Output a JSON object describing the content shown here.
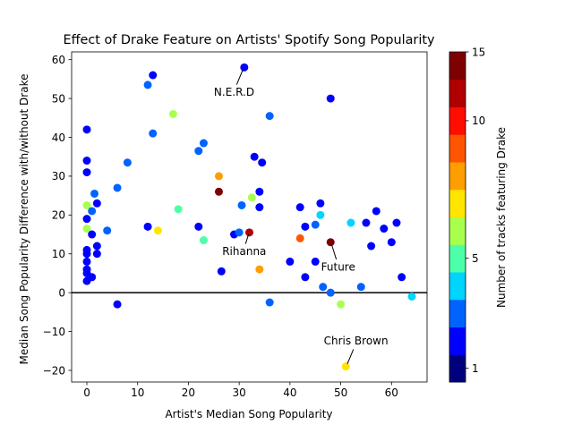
{
  "chart_data": {
    "type": "scatter",
    "title": "Effect of Drake Feature on Artists' Spotify Song Popularity",
    "xlabel": "Artist's Median Song Popularity",
    "ylabel": "Median Song Popularity Difference with/without Drake",
    "xlim": [
      -3,
      67
    ],
    "ylim": [
      -23,
      62
    ],
    "x_ticks": [
      0,
      10,
      20,
      30,
      40,
      50,
      60
    ],
    "y_ticks": [
      -20,
      -10,
      0,
      10,
      20,
      30,
      40,
      50,
      60
    ],
    "reference_line_y": 0,
    "grid": false,
    "colorbar": {
      "label": "Number of tracks featuring Drake",
      "ticks": [
        1,
        5,
        10,
        15
      ],
      "range": [
        0,
        15
      ],
      "colors": [
        "#00007f",
        "#0000ff",
        "#0063ff",
        "#00d4ff",
        "#4effa9",
        "#a9ff4e",
        "#ffe500",
        "#ff9e00",
        "#ff5500",
        "#ff0e00",
        "#b10000",
        "#7f0000"
      ],
      "boundaries": [
        0.4,
        1,
        2,
        3,
        4,
        5,
        6,
        7,
        8,
        9,
        10,
        11,
        15
      ]
    },
    "annotations": [
      {
        "text": "N.E.R.D",
        "x": 29,
        "y": 51.5,
        "point_x": 31,
        "point_y": 58
      },
      {
        "text": "Rihanna",
        "x": 31,
        "y": 10.5,
        "point_x": 32,
        "point_y": 15.5
      },
      {
        "text": "Future",
        "x": 49.5,
        "y": 6.5,
        "point_x": 48,
        "point_y": 13
      },
      {
        "text": "Chris Brown",
        "x": 53,
        "y": -12.5,
        "point_x": 51,
        "point_y": -19
      }
    ],
    "points": [
      {
        "x": 0,
        "y": 42,
        "n": 1
      },
      {
        "x": 0,
        "y": 34,
        "n": 1
      },
      {
        "x": 0,
        "y": 31,
        "n": 1
      },
      {
        "x": 0,
        "y": 22.5,
        "n": 5
      },
      {
        "x": 0,
        "y": 19,
        "n": 1
      },
      {
        "x": 0,
        "y": 16.5,
        "n": 5
      },
      {
        "x": 0,
        "y": 11,
        "n": 1
      },
      {
        "x": 0,
        "y": 10,
        "n": 1
      },
      {
        "x": 0,
        "y": 8,
        "n": 1
      },
      {
        "x": 0,
        "y": 6,
        "n": 1
      },
      {
        "x": 0,
        "y": 5,
        "n": 1
      },
      {
        "x": 0,
        "y": 3,
        "n": 1
      },
      {
        "x": 1,
        "y": 21,
        "n": 2
      },
      {
        "x": 1,
        "y": 15,
        "n": 1
      },
      {
        "x": 1,
        "y": 4,
        "n": 1
      },
      {
        "x": 1.5,
        "y": 25.5,
        "n": 2
      },
      {
        "x": 2,
        "y": 23,
        "n": 1
      },
      {
        "x": 2,
        "y": 12,
        "n": 1
      },
      {
        "x": 2,
        "y": 10,
        "n": 1
      },
      {
        "x": 4,
        "y": 16,
        "n": 2
      },
      {
        "x": 6,
        "y": 27,
        "n": 2
      },
      {
        "x": 6,
        "y": -3,
        "n": 1
      },
      {
        "x": 8,
        "y": 33.5,
        "n": 2
      },
      {
        "x": 12,
        "y": 53.5,
        "n": 2
      },
      {
        "x": 12,
        "y": 17,
        "n": 1
      },
      {
        "x": 13,
        "y": 56,
        "n": 1
      },
      {
        "x": 13,
        "y": 41,
        "n": 2
      },
      {
        "x": 14,
        "y": 16,
        "n": 6
      },
      {
        "x": 17,
        "y": 46,
        "n": 5
      },
      {
        "x": 18,
        "y": 21.5,
        "n": 4
      },
      {
        "x": 22,
        "y": 36.5,
        "n": 2
      },
      {
        "x": 22,
        "y": 17,
        "n": 1
      },
      {
        "x": 23,
        "y": 38.5,
        "n": 2
      },
      {
        "x": 23,
        "y": 13.5,
        "n": 4
      },
      {
        "x": 26,
        "y": 30,
        "n": 7
      },
      {
        "x": 26,
        "y": 26,
        "n": 15
      },
      {
        "x": 26.5,
        "y": 5.5,
        "n": 1
      },
      {
        "x": 29,
        "y": 15,
        "n": 1
      },
      {
        "x": 30,
        "y": 15.5,
        "n": 2
      },
      {
        "x": 30.5,
        "y": 22.5,
        "n": 2
      },
      {
        "x": 31,
        "y": 58,
        "n": 1
      },
      {
        "x": 32,
        "y": 15.5,
        "n": 10
      },
      {
        "x": 32.5,
        "y": 24.5,
        "n": 5
      },
      {
        "x": 33,
        "y": 35,
        "n": 1
      },
      {
        "x": 34,
        "y": 26,
        "n": 1
      },
      {
        "x": 34,
        "y": 22,
        "n": 1
      },
      {
        "x": 34,
        "y": 6,
        "n": 7
      },
      {
        "x": 34.5,
        "y": 33.5,
        "n": 1
      },
      {
        "x": 36,
        "y": 45.5,
        "n": 2
      },
      {
        "x": 36,
        "y": -2.5,
        "n": 2
      },
      {
        "x": 40,
        "y": 8,
        "n": 1
      },
      {
        "x": 42,
        "y": 22,
        "n": 1
      },
      {
        "x": 42,
        "y": 14,
        "n": 8
      },
      {
        "x": 43,
        "y": 17,
        "n": 1
      },
      {
        "x": 43,
        "y": 4,
        "n": 1
      },
      {
        "x": 45,
        "y": 17.5,
        "n": 2
      },
      {
        "x": 45,
        "y": 8,
        "n": 1
      },
      {
        "x": 46,
        "y": 23,
        "n": 1
      },
      {
        "x": 46,
        "y": 20,
        "n": 3
      },
      {
        "x": 46.5,
        "y": 1.5,
        "n": 2
      },
      {
        "x": 48,
        "y": 50,
        "n": 1
      },
      {
        "x": 48,
        "y": 13,
        "n": 15
      },
      {
        "x": 48,
        "y": 0,
        "n": 2
      },
      {
        "x": 50,
        "y": -3,
        "n": 5
      },
      {
        "x": 51,
        "y": -19,
        "n": 6
      },
      {
        "x": 52,
        "y": 18,
        "n": 3
      },
      {
        "x": 54,
        "y": 1.5,
        "n": 2
      },
      {
        "x": 55,
        "y": 18,
        "n": 1
      },
      {
        "x": 56,
        "y": 12,
        "n": 1
      },
      {
        "x": 57,
        "y": 21,
        "n": 1
      },
      {
        "x": 58.5,
        "y": 16.5,
        "n": 1
      },
      {
        "x": 60,
        "y": 13,
        "n": 1
      },
      {
        "x": 61,
        "y": 18,
        "n": 1
      },
      {
        "x": 62,
        "y": 4,
        "n": 1
      },
      {
        "x": 64,
        "y": -1,
        "n": 3
      }
    ]
  }
}
